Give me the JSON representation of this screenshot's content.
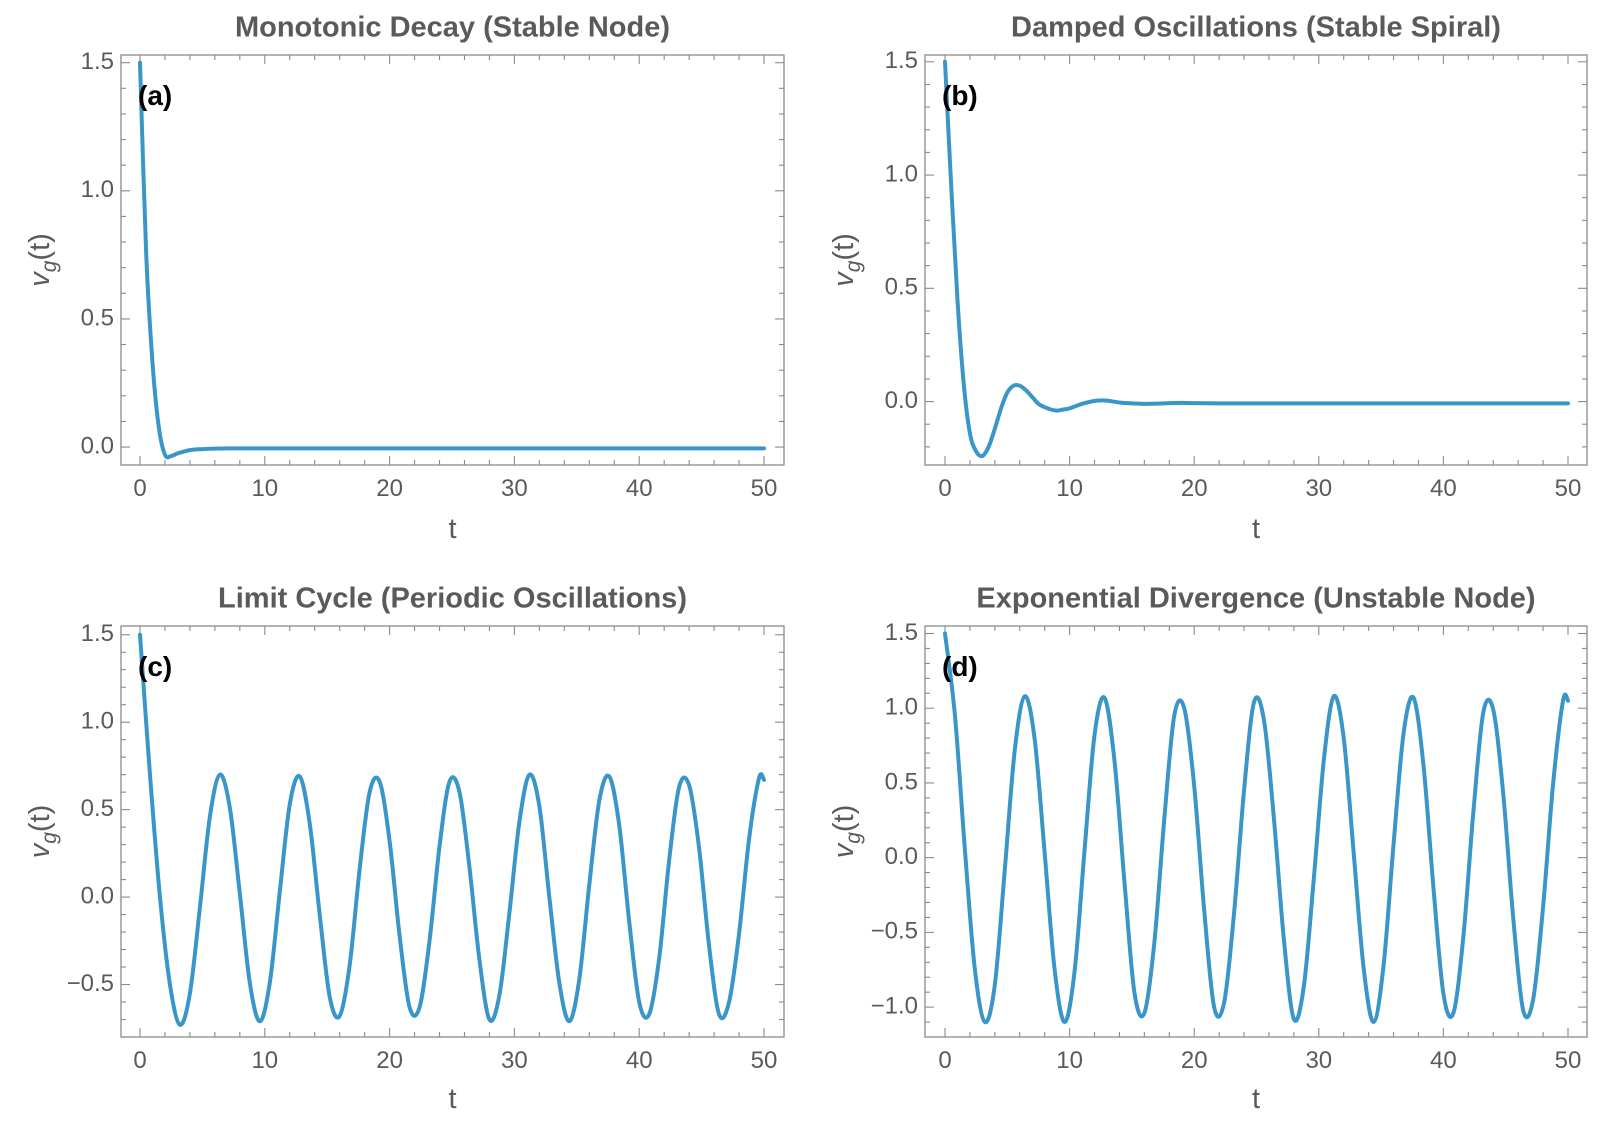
{
  "chart_data": [
    {
      "type": "line",
      "panel_label": "(a)",
      "title": "Monotonic Decay (Stable Node)",
      "xlabel": "t",
      "ylabel": "v_g(t)",
      "ylabel_base": "v",
      "ylabel_sub": "g",
      "ylabel_arg": "(t)",
      "xlim": [
        0,
        50
      ],
      "ylim": [
        -0.07,
        1.53
      ],
      "xticks": [
        0,
        10,
        20,
        30,
        40,
        50
      ],
      "yticks": [
        0.0,
        0.5,
        1.0,
        1.5
      ],
      "ytick_labels": [
        "0.0",
        "0.5",
        "1.0",
        "1.5"
      ],
      "line_color": "#3a96c8",
      "series": [
        {
          "name": "v_g(t)",
          "x": [
            0,
            0.5,
            1,
            1.5,
            2,
            2.5,
            3,
            4,
            5,
            6,
            8,
            10,
            15,
            20,
            30,
            40,
            50
          ],
          "y": [
            1.5,
            0.75,
            0.33,
            0.08,
            -0.03,
            -0.035,
            -0.025,
            -0.012,
            -0.008,
            -0.006,
            -0.005,
            -0.005,
            -0.005,
            -0.005,
            -0.005,
            -0.005,
            -0.005
          ]
        }
      ]
    },
    {
      "type": "line",
      "panel_label": "(b)",
      "title": "Damped Oscillations (Stable Spiral)",
      "xlabel": "t",
      "ylabel": "v_g(t)",
      "ylabel_base": "v",
      "ylabel_sub": "g",
      "ylabel_arg": "(t)",
      "xlim": [
        0,
        50
      ],
      "ylim": [
        -0.28,
        1.53
      ],
      "xticks": [
        0,
        10,
        20,
        30,
        40,
        50
      ],
      "yticks": [
        0.0,
        0.5,
        1.0,
        1.5
      ],
      "ytick_labels": [
        "0.0",
        "0.5",
        "1.0",
        "1.5"
      ],
      "line_color": "#3a96c8",
      "series": [
        {
          "name": "v_g(t)",
          "x": [
            0,
            0.5,
            1,
            1.5,
            2,
            2.5,
            3,
            3.5,
            4,
            4.5,
            5,
            5.5,
            6,
            6.5,
            7,
            7.5,
            8,
            8.5,
            9,
            9.5,
            10,
            11,
            12,
            12.5,
            13,
            14,
            15,
            16,
            17,
            18,
            19,
            20,
            22,
            25,
            30,
            40,
            50
          ],
          "y": [
            1.5,
            0.95,
            0.45,
            0.08,
            -0.14,
            -0.22,
            -0.24,
            -0.2,
            -0.12,
            -0.03,
            0.04,
            0.07,
            0.07,
            0.05,
            0.02,
            -0.01,
            -0.025,
            -0.035,
            -0.04,
            -0.035,
            -0.03,
            -0.01,
            0.003,
            0.005,
            0.004,
            -0.004,
            -0.008,
            -0.01,
            -0.009,
            -0.007,
            -0.006,
            -0.007,
            -0.008,
            -0.008,
            -0.008,
            -0.008,
            -0.008
          ]
        }
      ]
    },
    {
      "type": "line",
      "panel_label": "(c)",
      "title": "Limit Cycle (Periodic Oscillations)",
      "xlabel": "t",
      "ylabel": "v_g(t)",
      "ylabel_base": "v",
      "ylabel_sub": "g",
      "ylabel_arg": "(t)",
      "xlim": [
        0,
        50
      ],
      "ylim": [
        -0.8,
        1.55
      ],
      "xticks": [
        0,
        10,
        20,
        30,
        40,
        50
      ],
      "yticks": [
        -0.5,
        0.0,
        0.5,
        1.0,
        1.5
      ],
      "ytick_labels": [
        "−0.5",
        "0.0",
        "0.5",
        "1.0",
        "1.5"
      ],
      "line_color": "#3a96c8",
      "series": [
        {
          "name": "v_g(t)",
          "x": [
            0,
            0.8,
            1.6,
            2.4,
            3.2,
            4.0,
            4.8,
            5.6,
            6.4,
            7.2,
            8.0,
            8.8,
            9.6,
            10.4,
            11.2,
            12.0,
            12.8,
            13.6,
            14.4,
            15.2,
            16.0,
            16.8,
            17.6,
            18.4,
            19.2,
            20.0,
            20.8,
            21.6,
            22.4,
            23.2,
            24.0,
            24.8,
            25.6,
            26.4,
            27.2,
            28.0,
            28.8,
            29.6,
            30.4,
            31.2,
            32.0,
            32.8,
            33.6,
            34.4,
            35.2,
            36.0,
            36.8,
            37.6,
            38.4,
            39.2,
            40.0,
            40.8,
            41.6,
            42.4,
            43.2,
            44.0,
            44.8,
            45.6,
            46.4,
            47.2,
            48.0,
            48.8,
            49.6,
            50.0
          ],
          "y": [
            1.5,
            0.7,
            0.0,
            -0.5,
            -0.73,
            -0.55,
            -0.06,
            0.46,
            0.7,
            0.51,
            0.02,
            -0.49,
            -0.71,
            -0.49,
            0.03,
            0.53,
            0.69,
            0.42,
            -0.1,
            -0.57,
            -0.68,
            -0.39,
            0.16,
            0.6,
            0.66,
            0.32,
            -0.22,
            -0.63,
            -0.63,
            -0.25,
            0.29,
            0.66,
            0.6,
            0.17,
            -0.36,
            -0.7,
            -0.56,
            -0.09,
            0.43,
            0.7,
            0.52,
            0.0,
            -0.49,
            -0.71,
            -0.47,
            0.07,
            0.55,
            0.69,
            0.41,
            -0.14,
            -0.6,
            -0.67,
            -0.35,
            0.21,
            0.63,
            0.64,
            0.28,
            -0.28,
            -0.67,
            -0.6,
            -0.21,
            0.33,
            0.68,
            0.67
          ]
        }
      ]
    },
    {
      "type": "line",
      "panel_label": "(d)",
      "title": "Exponential Divergence (Unstable Node)",
      "xlabel": "t",
      "ylabel": "v_g(t)",
      "ylabel_base": "v",
      "ylabel_sub": "g",
      "ylabel_arg": "(t)",
      "xlim": [
        0,
        50
      ],
      "ylim": [
        -1.2,
        1.55
      ],
      "xticks": [
        0,
        10,
        20,
        30,
        40,
        50
      ],
      "yticks": [
        -1.0,
        -0.5,
        0.0,
        0.5,
        1.0,
        1.5
      ],
      "ytick_labels": [
        "−1.0",
        "−0.5",
        "0.0",
        "0.5",
        "1.0",
        "1.5"
      ],
      "line_color": "#3a96c8",
      "series": [
        {
          "name": "v_g(t)",
          "x": [
            0,
            0.8,
            1.6,
            2.4,
            3.2,
            4.0,
            4.8,
            5.6,
            6.4,
            7.2,
            8.0,
            8.8,
            9.6,
            10.4,
            11.2,
            12.0,
            12.8,
            13.6,
            14.4,
            15.2,
            16.0,
            16.8,
            17.6,
            18.4,
            19.2,
            20.0,
            20.8,
            21.6,
            22.4,
            23.2,
            24.0,
            24.8,
            25.6,
            26.4,
            27.2,
            28.0,
            28.8,
            29.6,
            30.4,
            31.2,
            32.0,
            32.8,
            33.6,
            34.4,
            35.2,
            36.0,
            36.8,
            37.6,
            38.4,
            39.2,
            40.0,
            40.8,
            41.6,
            42.4,
            43.2,
            44.0,
            44.8,
            45.6,
            46.4,
            47.2,
            48.0,
            48.8,
            49.6,
            50.0
          ],
          "y": [
            1.5,
            0.95,
            0.05,
            -0.75,
            -1.1,
            -0.85,
            -0.08,
            0.72,
            1.08,
            0.79,
            0.03,
            -0.75,
            -1.1,
            -0.76,
            0.05,
            0.82,
            1.07,
            0.65,
            -0.16,
            -0.9,
            -1.04,
            -0.57,
            0.26,
            0.95,
            1.0,
            0.48,
            -0.35,
            -1.0,
            -0.97,
            -0.37,
            0.45,
            1.04,
            0.92,
            0.26,
            -0.55,
            -1.08,
            -0.86,
            -0.14,
            0.65,
            1.08,
            0.8,
            0.03,
            -0.74,
            -1.1,
            -0.72,
            0.09,
            0.83,
            1.07,
            0.62,
            -0.2,
            -0.91,
            -1.04,
            -0.53,
            0.3,
            0.97,
            0.99,
            0.43,
            -0.4,
            -1.02,
            -0.95,
            -0.33,
            0.49,
            1.05,
            1.05
          ]
        }
      ]
    }
  ]
}
